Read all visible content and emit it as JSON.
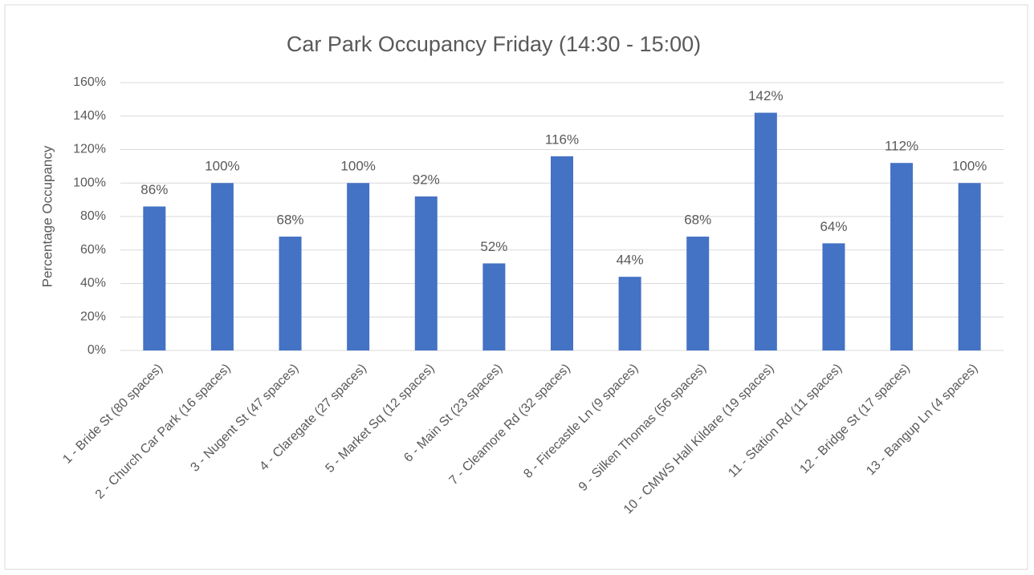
{
  "chart_data": {
    "type": "bar",
    "title": "Car Park Occupancy Friday (14:30 - 15:00)",
    "y_label": "Percentage Occupancy",
    "categories": [
      "1 - Bride St (80 spaces)",
      "2 - Church Car Park (16 spaces)",
      "3 - Nugent St (47 spaces)",
      "4 - Claregate (27 spaces)",
      "5 - Market Sq (12 spaces)",
      "6 - Main St (23 spaces)",
      "7 - Cleamore Rd (32 spaces)",
      "8 - Firecastle Ln (9 spaces)",
      "9 - Silken Thomas (56 spaces)",
      "10 - CMWS Hall Kildare (19 spaces)",
      "11 - Station Rd (11 spaces)",
      "12 - Bridge St (17 spaces)",
      "13 - Bangup Ln (4 spaces)"
    ],
    "values": [
      86,
      100,
      68,
      100,
      92,
      52,
      116,
      44,
      68,
      142,
      64,
      112,
      100
    ],
    "value_labels": [
      "86%",
      "100%",
      "68%",
      "100%",
      "92%",
      "52%",
      "116%",
      "44%",
      "68%",
      "142%",
      "64%",
      "112%",
      "100%"
    ],
    "color": "#4472c4",
    "ylim": [
      0,
      160
    ],
    "yticks": [
      {
        "value": 0,
        "label": "0%"
      },
      {
        "value": 20,
        "label": "20%"
      },
      {
        "value": 40,
        "label": "40%"
      },
      {
        "value": 60,
        "label": "60%"
      },
      {
        "value": 80,
        "label": "80%"
      },
      {
        "value": 100,
        "label": "100%"
      },
      {
        "value": 120,
        "label": "120%"
      },
      {
        "value": 140,
        "label": "140%"
      },
      {
        "value": 160,
        "label": "160%"
      }
    ],
    "grid": true
  }
}
